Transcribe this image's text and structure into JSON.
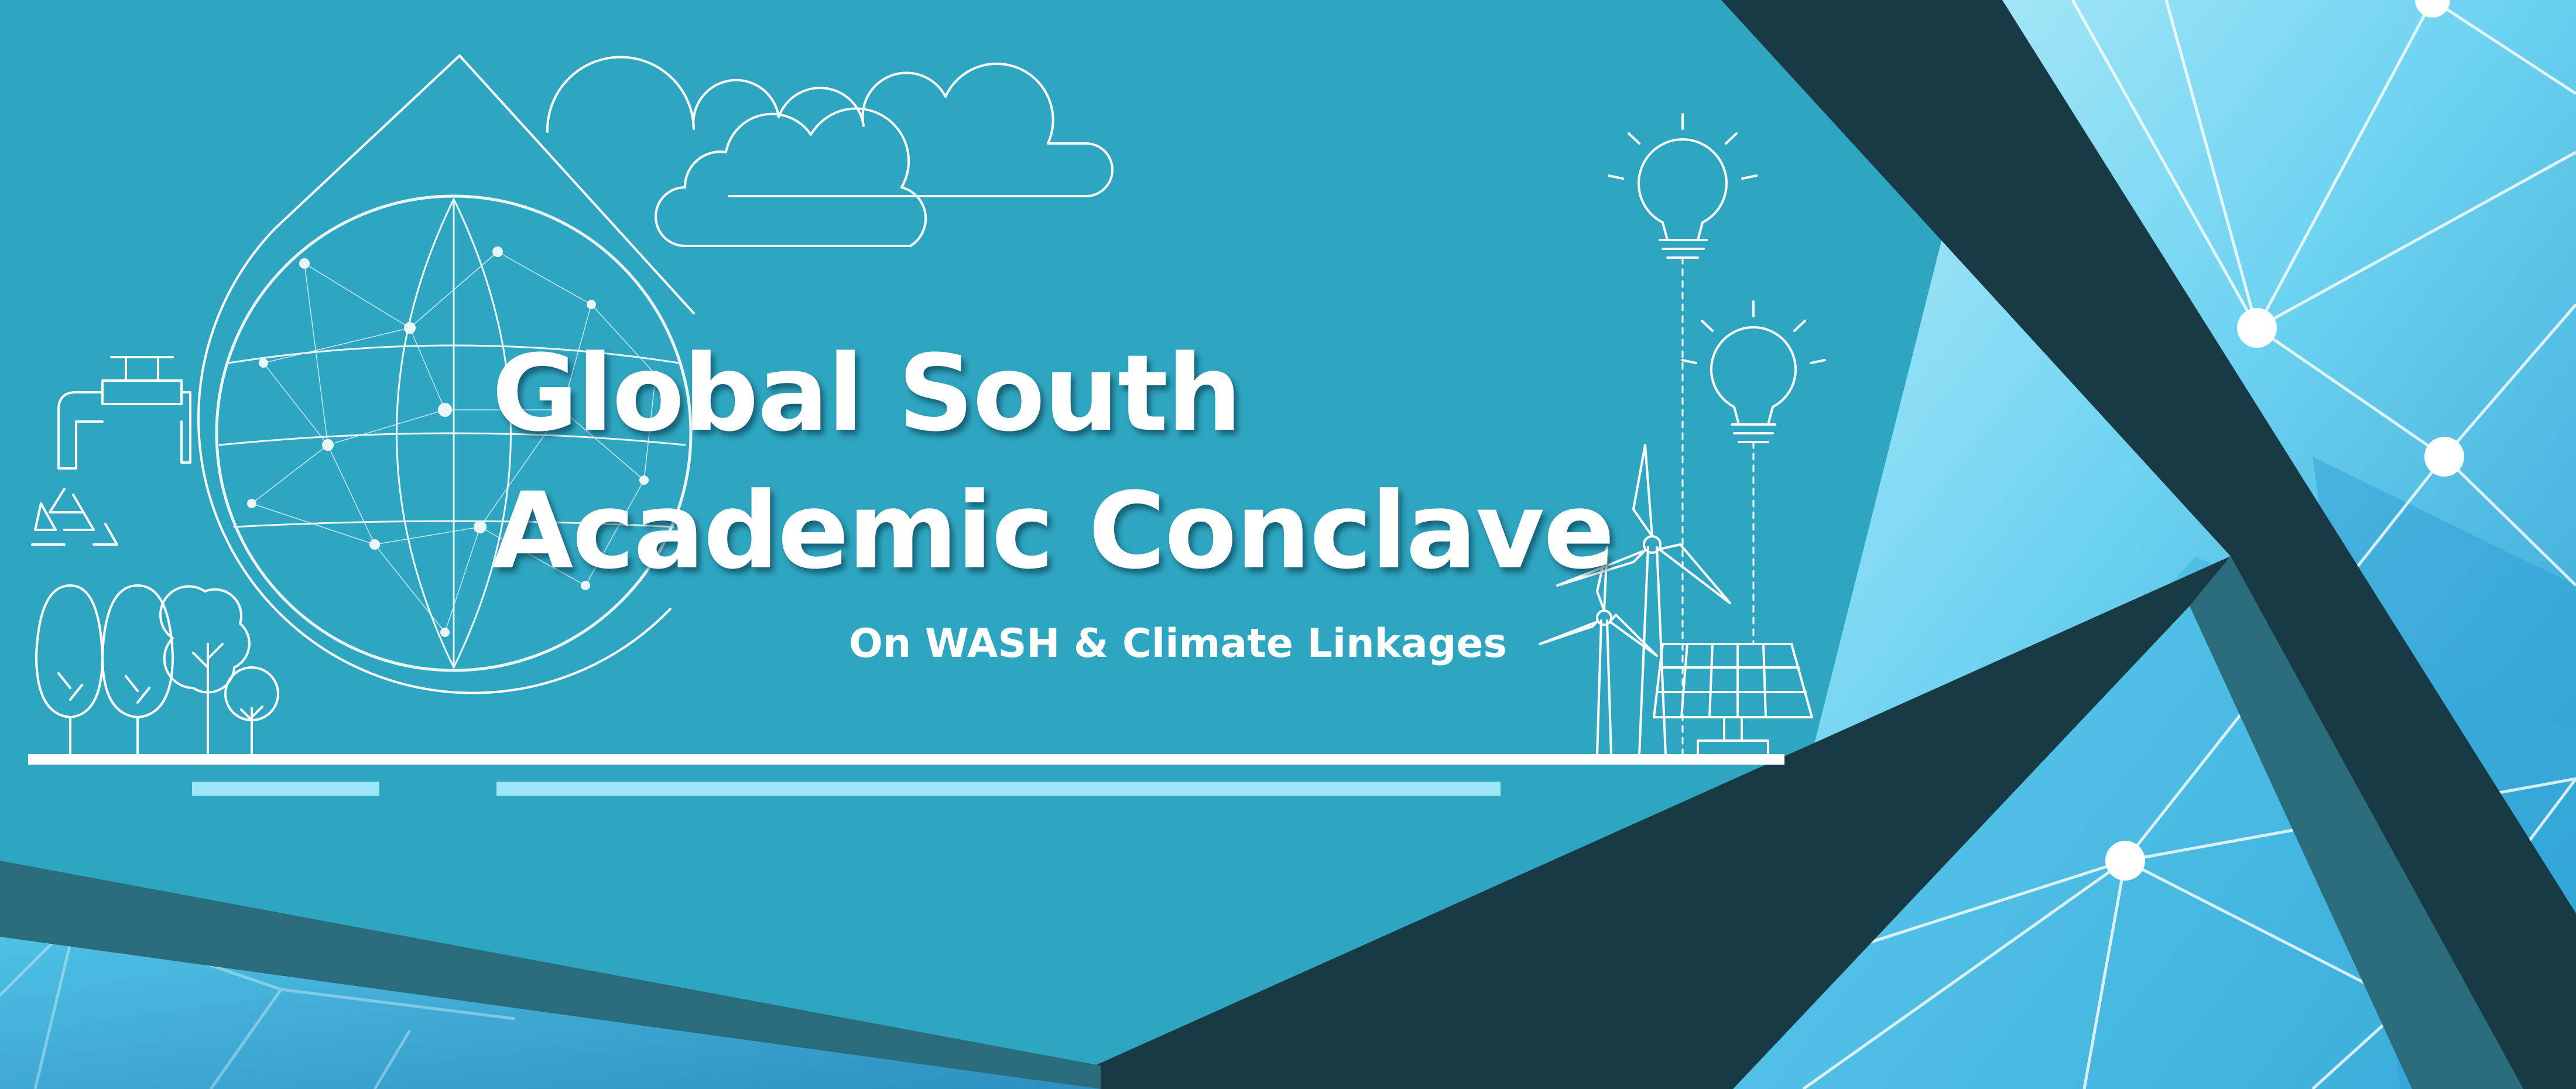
{
  "banner": {
    "title_line_1": "Global South",
    "title_line_2": "Academic Conclave",
    "subtitle": "On WASH & Climate Linkages"
  },
  "colors": {
    "background": "#2fa6c1",
    "dark_band": "#183a45",
    "mid_band": "#2b6c7c",
    "light_panel": "#55c8ea",
    "text": "#ffffff",
    "accent_bar": "#9fe6f6"
  },
  "icons": [
    "water-drop-icon",
    "globe-network-icon",
    "water-tap-icon",
    "recycle-icon",
    "cloud-icon",
    "tree-icon",
    "light-bulb-icon",
    "wind-turbine-icon",
    "solar-panel-icon",
    "network-mesh-pattern"
  ]
}
